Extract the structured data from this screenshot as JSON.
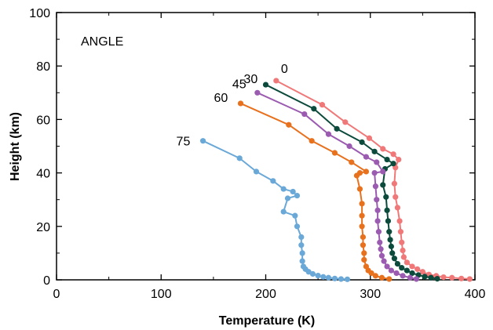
{
  "chart_data": {
    "type": "line",
    "title": "",
    "xlabel": "Temperature (K)",
    "ylabel": "Height (km)",
    "xlim": [
      0,
      400
    ],
    "ylim": [
      0,
      100
    ],
    "xticks": [
      0,
      100,
      200,
      300,
      400
    ],
    "yticks": [
      0,
      20,
      40,
      60,
      80,
      100
    ],
    "x_minor_step": 50,
    "y_minor_step": 10,
    "grid": false,
    "annotation": "ANGLE",
    "series": [
      {
        "name": "0",
        "color": "#f07878",
        "points": [
          [
            210,
            74.5
          ],
          [
            254,
            65.5
          ],
          [
            276,
            59
          ],
          [
            299,
            53
          ],
          [
            312,
            49
          ],
          [
            322,
            47
          ],
          [
            327,
            45
          ],
          [
            324,
            42
          ],
          [
            323,
            36
          ],
          [
            324,
            31
          ],
          [
            326,
            27
          ],
          [
            328,
            22
          ],
          [
            329,
            18
          ],
          [
            330,
            14
          ],
          [
            331,
            11
          ],
          [
            332,
            8.5
          ],
          [
            335,
            6.5
          ],
          [
            340,
            5
          ],
          [
            345,
            4
          ],
          [
            350,
            3
          ],
          [
            356,
            2
          ],
          [
            363,
            1.5
          ],
          [
            370,
            1
          ],
          [
            378,
            0.8
          ],
          [
            387,
            0.5
          ],
          [
            395,
            0.3
          ]
        ]
      },
      {
        "name": "30",
        "color": "#0c4a3c",
        "points": [
          [
            200,
            73
          ],
          [
            246,
            64
          ],
          [
            268,
            56.5
          ],
          [
            292,
            51.5
          ],
          [
            304,
            48
          ],
          [
            316,
            45
          ],
          [
            322,
            43.5
          ],
          [
            314,
            41.5
          ],
          [
            312,
            35.5
          ],
          [
            315,
            31
          ],
          [
            316,
            26
          ],
          [
            317,
            22
          ],
          [
            318,
            18
          ],
          [
            319,
            15
          ],
          [
            320,
            12.5
          ],
          [
            321,
            10
          ],
          [
            323,
            8
          ],
          [
            326,
            6
          ],
          [
            330,
            4.5
          ],
          [
            335,
            3.5
          ],
          [
            340,
            2.5
          ],
          [
            346,
            1.8
          ],
          [
            352,
            1.2
          ],
          [
            358,
            0.8
          ],
          [
            364,
            0.4
          ]
        ]
      },
      {
        "name": "45",
        "color": "#9b5bb0",
        "points": [
          [
            192,
            70
          ],
          [
            237,
            62
          ],
          [
            260,
            54.5
          ],
          [
            280,
            50
          ],
          [
            296,
            46
          ],
          [
            306,
            44
          ],
          [
            312,
            40.5
          ],
          [
            304,
            40
          ],
          [
            305,
            35
          ],
          [
            306,
            30
          ],
          [
            307,
            26
          ],
          [
            307,
            22
          ],
          [
            308,
            18
          ],
          [
            309,
            14
          ],
          [
            310,
            11.5
          ],
          [
            311,
            9
          ],
          [
            313,
            7
          ],
          [
            316,
            5
          ],
          [
            320,
            3.5
          ],
          [
            325,
            2.5
          ],
          [
            331,
            1.5
          ],
          [
            338,
            0.8
          ],
          [
            344,
            0.3
          ]
        ]
      },
      {
        "name": "60",
        "color": "#e8711e",
        "points": [
          [
            176,
            66
          ],
          [
            222,
            58
          ],
          [
            244,
            52
          ],
          [
            266,
            47.5
          ],
          [
            282,
            44
          ],
          [
            296,
            40.5
          ],
          [
            290,
            40
          ],
          [
            287,
            39
          ],
          [
            290,
            34
          ],
          [
            292,
            28.5
          ],
          [
            292,
            24
          ],
          [
            292,
            20
          ],
          [
            293,
            16
          ],
          [
            293,
            13
          ],
          [
            294,
            10
          ],
          [
            294,
            7.5
          ],
          [
            296,
            5
          ],
          [
            298,
            3.5
          ],
          [
            301,
            2.5
          ],
          [
            305,
            1.5
          ],
          [
            311,
            0.8
          ],
          [
            318,
            0.3
          ]
        ]
      },
      {
        "name": "75",
        "color": "#6aa8d8",
        "points": [
          [
            140,
            52
          ],
          [
            175,
            45.5
          ],
          [
            191,
            40.5
          ],
          [
            207,
            37
          ],
          [
            217,
            34
          ],
          [
            226,
            33
          ],
          [
            230,
            31.5
          ],
          [
            221,
            30.5
          ],
          [
            217,
            25.5
          ],
          [
            228,
            24
          ],
          [
            230,
            20
          ],
          [
            234,
            16
          ],
          [
            234,
            13
          ],
          [
            235,
            10
          ],
          [
            235,
            7
          ],
          [
            236,
            5
          ],
          [
            238,
            4
          ],
          [
            241,
            3
          ],
          [
            245,
            2.2
          ],
          [
            250,
            1.6
          ],
          [
            255,
            1.1
          ],
          [
            260,
            0.8
          ],
          [
            266,
            0.5
          ],
          [
            272,
            0.3
          ],
          [
            278,
            0.2
          ]
        ]
      }
    ]
  }
}
